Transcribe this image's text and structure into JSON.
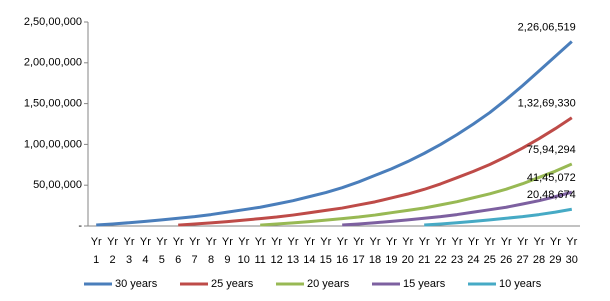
{
  "chart_data": {
    "type": "line",
    "categories": [
      "Yr 1",
      "Yr 2",
      "Yr 3",
      "Yr 4",
      "Yr 5",
      "Yr 6",
      "Yr 7",
      "Yr 8",
      "Yr 9",
      "Yr 10",
      "Yr 11",
      "Yr 12",
      "Yr 13",
      "Yr 14",
      "Yr 15",
      "Yr 16",
      "Yr 17",
      "Yr 18",
      "Yr 19",
      "Yr 20",
      "Yr 21",
      "Yr 22",
      "Yr 23",
      "Yr 24",
      "Yr 25",
      "Yr 26",
      "Yr 27",
      "Yr 28",
      "Yr 29",
      "Yr 30"
    ],
    "ylim": [
      0,
      25000000
    ],
    "yticks": [
      {
        "value": 0,
        "label": "-"
      },
      {
        "value": 5000000,
        "label": "50,00,000"
      },
      {
        "value": 10000000,
        "label": "1,00,00,000"
      },
      {
        "value": 15000000,
        "label": "1,50,00,000"
      },
      {
        "value": 20000000,
        "label": "2,00,00,000"
      },
      {
        "value": 25000000,
        "label": "2,50,00,000"
      }
    ],
    "grid": false,
    "legend": "bottom",
    "series": [
      {
        "name": "30 years",
        "color": "#4a7ebb",
        "values": [
          120000,
          250000,
          400000,
          560000,
          750000,
          950000,
          1150000,
          1400000,
          1700000,
          2000000,
          2300000,
          2700000,
          3100000,
          3600000,
          4100000,
          4700000,
          5400000,
          6200000,
          7000000,
          7900000,
          8900000,
          10000000,
          11200000,
          12500000,
          13900000,
          15500000,
          17200000,
          19000000,
          20800000,
          22606519
        ],
        "value_labels": [
          null,
          null,
          null,
          null,
          null,
          null,
          null,
          null,
          null,
          null,
          null,
          null,
          null,
          null,
          null,
          null,
          null,
          null,
          null,
          null,
          null,
          null,
          null,
          null,
          null,
          null,
          null,
          null,
          null,
          "2,26,06,519"
        ]
      },
      {
        "name": "25 years",
        "color": "#be4b48",
        "values": [
          null,
          null,
          null,
          null,
          null,
          115000,
          240000,
          380000,
          535000,
          715000,
          910000,
          1100000,
          1340000,
          1620000,
          1910000,
          2200000,
          2580000,
          2960000,
          3440000,
          3920000,
          4490000,
          5160000,
          5920000,
          6690000,
          7540000,
          8500000,
          9550000,
          10700000,
          11940000,
          13269330
        ],
        "value_labels": [
          null,
          null,
          null,
          null,
          null,
          null,
          null,
          null,
          null,
          null,
          null,
          null,
          null,
          null,
          null,
          null,
          null,
          null,
          null,
          null,
          null,
          null,
          null,
          null,
          null,
          null,
          null,
          null,
          null,
          "1,32,69,330"
        ]
      },
      {
        "name": "20 years",
        "color": "#98b954",
        "values": [
          null,
          null,
          null,
          null,
          null,
          null,
          null,
          null,
          null,
          null,
          115000,
          240000,
          385000,
          540000,
          720000,
          910000,
          1100000,
          1340000,
          1630000,
          1920000,
          2210000,
          2590000,
          2980000,
          3460000,
          3940000,
          4510000,
          5180000,
          5950000,
          6720000,
          7594294
        ],
        "value_labels": [
          null,
          null,
          null,
          null,
          null,
          null,
          null,
          null,
          null,
          null,
          null,
          null,
          null,
          null,
          null,
          null,
          null,
          null,
          null,
          null,
          null,
          null,
          null,
          null,
          null,
          null,
          null,
          null,
          null,
          "75,94,294"
        ]
      },
      {
        "name": "15 years",
        "color": "#7d60a0",
        "values": [
          null,
          null,
          null,
          null,
          null,
          null,
          null,
          null,
          null,
          null,
          null,
          null,
          null,
          null,
          null,
          120000,
          250000,
          400000,
          560000,
          750000,
          950000,
          1150000,
          1400000,
          1700000,
          2000000,
          2300000,
          2700000,
          3100000,
          3600000,
          4145072
        ],
        "value_labels": [
          null,
          null,
          null,
          null,
          null,
          null,
          null,
          null,
          null,
          null,
          null,
          null,
          null,
          null,
          null,
          null,
          null,
          null,
          null,
          null,
          null,
          null,
          null,
          null,
          null,
          null,
          null,
          null,
          null,
          "41,45,072"
        ]
      },
      {
        "name": "10 years",
        "color": "#46aac5",
        "values": [
          null,
          null,
          null,
          null,
          null,
          null,
          null,
          null,
          null,
          null,
          null,
          null,
          null,
          null,
          null,
          null,
          null,
          null,
          null,
          null,
          120000,
          250000,
          400000,
          560000,
          750000,
          950000,
          1150000,
          1400000,
          1700000,
          2048674
        ],
        "value_labels": [
          null,
          null,
          null,
          null,
          null,
          null,
          null,
          null,
          null,
          null,
          null,
          null,
          null,
          null,
          null,
          null,
          null,
          null,
          null,
          null,
          null,
          null,
          null,
          null,
          null,
          null,
          null,
          null,
          null,
          "20,48,674"
        ]
      }
    ]
  }
}
